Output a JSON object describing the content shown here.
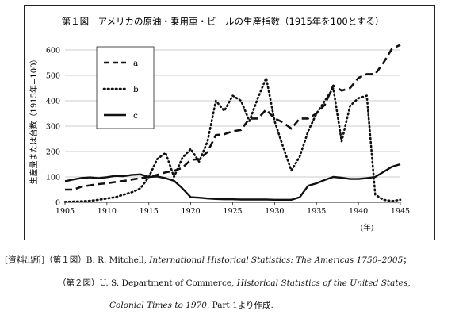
{
  "chart_data": {
    "type": "line",
    "title": "第１図　アメリカの原油・乗用車・ビールの生産指数（1915年を100とする）",
    "xlabel": "(年)",
    "ylabel": "生産量または台数（1915年=100）",
    "xlim": [
      1905,
      1945
    ],
    "ylim": [
      0,
      650
    ],
    "xticks": [
      "1905",
      "1910",
      "1915",
      "1920",
      "1925",
      "1930",
      "1935",
      "1940",
      "1945"
    ],
    "yticks": [
      "0",
      "100",
      "200",
      "300",
      "400",
      "500",
      "600"
    ],
    "grid": "horizontal",
    "legend": "top-left",
    "series": [
      {
        "name": "a",
        "style": "dashed",
        "x": [
          1905,
          1906,
          1907,
          1908,
          1909,
          1910,
          1911,
          1912,
          1913,
          1914,
          1915,
          1916,
          1917,
          1918,
          1919,
          1920,
          1921,
          1922,
          1923,
          1924,
          1925,
          1926,
          1927,
          1928,
          1929,
          1930,
          1931,
          1932,
          1933,
          1934,
          1935,
          1936,
          1937,
          1938,
          1939,
          1940,
          1941,
          1942,
          1943,
          1944,
          1945
        ],
        "y": [
          50,
          50,
          62,
          67,
          72,
          75,
          80,
          84,
          90,
          95,
          100,
          108,
          118,
          124,
          136,
          167,
          170,
          198,
          265,
          268,
          280,
          285,
          330,
          330,
          365,
          330,
          315,
          290,
          330,
          330,
          350,
          385,
          460,
          440,
          450,
          490,
          505,
          505,
          550,
          605,
          620
        ]
      },
      {
        "name": "b",
        "style": "dotted",
        "x": [
          1905,
          1906,
          1907,
          1908,
          1909,
          1910,
          1911,
          1912,
          1913,
          1914,
          1915,
          1916,
          1917,
          1918,
          1919,
          1920,
          1921,
          1922,
          1923,
          1924,
          1925,
          1926,
          1927,
          1928,
          1929,
          1930,
          1931,
          1932,
          1933,
          1934,
          1935,
          1936,
          1937,
          1938,
          1939,
          1940,
          1941,
          1942,
          1943,
          1944,
          1945
        ],
        "y": [
          2,
          3,
          4,
          6,
          10,
          15,
          20,
          30,
          40,
          55,
          100,
          170,
          195,
          100,
          175,
          210,
          160,
          240,
          400,
          360,
          420,
          400,
          320,
          410,
          490,
          320,
          220,
          125,
          180,
          280,
          350,
          400,
          450,
          240,
          380,
          410,
          420,
          30,
          10,
          5,
          10
        ]
      },
      {
        "name": "c",
        "style": "solid",
        "x": [
          1905,
          1906,
          1907,
          1908,
          1909,
          1910,
          1911,
          1912,
          1913,
          1914,
          1915,
          1916,
          1917,
          1918,
          1919,
          1920,
          1921,
          1922,
          1923,
          1924,
          1925,
          1926,
          1927,
          1928,
          1929,
          1930,
          1931,
          1932,
          1933,
          1934,
          1935,
          1936,
          1937,
          1938,
          1939,
          1940,
          1941,
          1942,
          1943,
          1944,
          1945
        ],
        "y": [
          83,
          90,
          96,
          98,
          95,
          99,
          104,
          103,
          108,
          110,
          100,
          102,
          95,
          85,
          55,
          20,
          18,
          15,
          13,
          12,
          12,
          11,
          11,
          11,
          11,
          10,
          10,
          10,
          20,
          65,
          75,
          88,
          100,
          97,
          92,
          92,
          95,
          100,
          120,
          140,
          150
        ]
      }
    ]
  },
  "source": {
    "label": "[資料出所]",
    "line1_prefix": "（第１図）B. R. Mitchell, ",
    "line1_title": "International Historical Statistics: The Americas 1750–2005",
    "line1_suffix": "；",
    "line2_prefix": "（第２図）U. S. Department of Commerce, ",
    "line2_title": "Historical Statistics of the United States,",
    "line3_title": "Colonial Times to 1970",
    "line3_suffix": ", Part 1より作成."
  }
}
